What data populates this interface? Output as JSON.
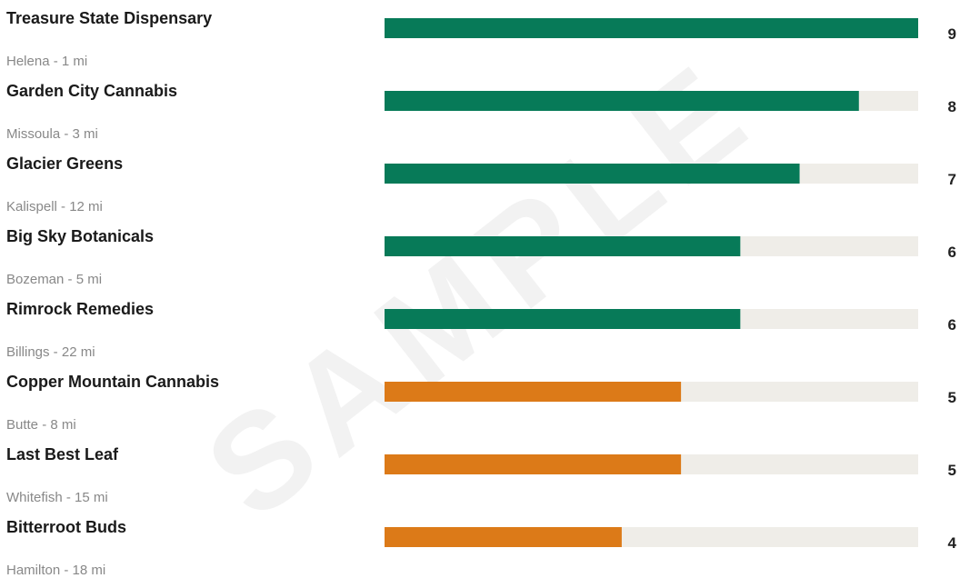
{
  "watermark": "SAMPLE",
  "colors": {
    "high": "#077a58",
    "low": "#dc7a18",
    "track": "#efede8"
  },
  "chart_data": {
    "type": "bar",
    "orientation": "horizontal",
    "xlim": [
      0,
      9
    ],
    "categories": [
      "Treasure State Dispensary",
      "Garden City Cannabis",
      "Glacier Greens",
      "Big Sky Botanicals",
      "Rimrock Remedies",
      "Copper Mountain Cannabis",
      "Last Best Leaf",
      "Bitterroot Buds"
    ],
    "subtitles": [
      "Helena - 1 mi",
      "Missoula - 3 mi",
      "Kalispell - 12 mi",
      "Bozeman - 5 mi",
      "Billings - 22 mi",
      "Butte - 8 mi",
      "Whitefish - 15 mi",
      "Hamilton - 18 mi"
    ],
    "values": [
      9,
      8,
      7,
      6,
      6,
      5,
      5,
      4
    ],
    "value_labels": [
      "9",
      "8",
      "7",
      "6",
      "6",
      "5",
      "5",
      "4"
    ],
    "bar_colors": [
      "high",
      "high",
      "high",
      "high",
      "high",
      "low",
      "low",
      "low"
    ]
  }
}
